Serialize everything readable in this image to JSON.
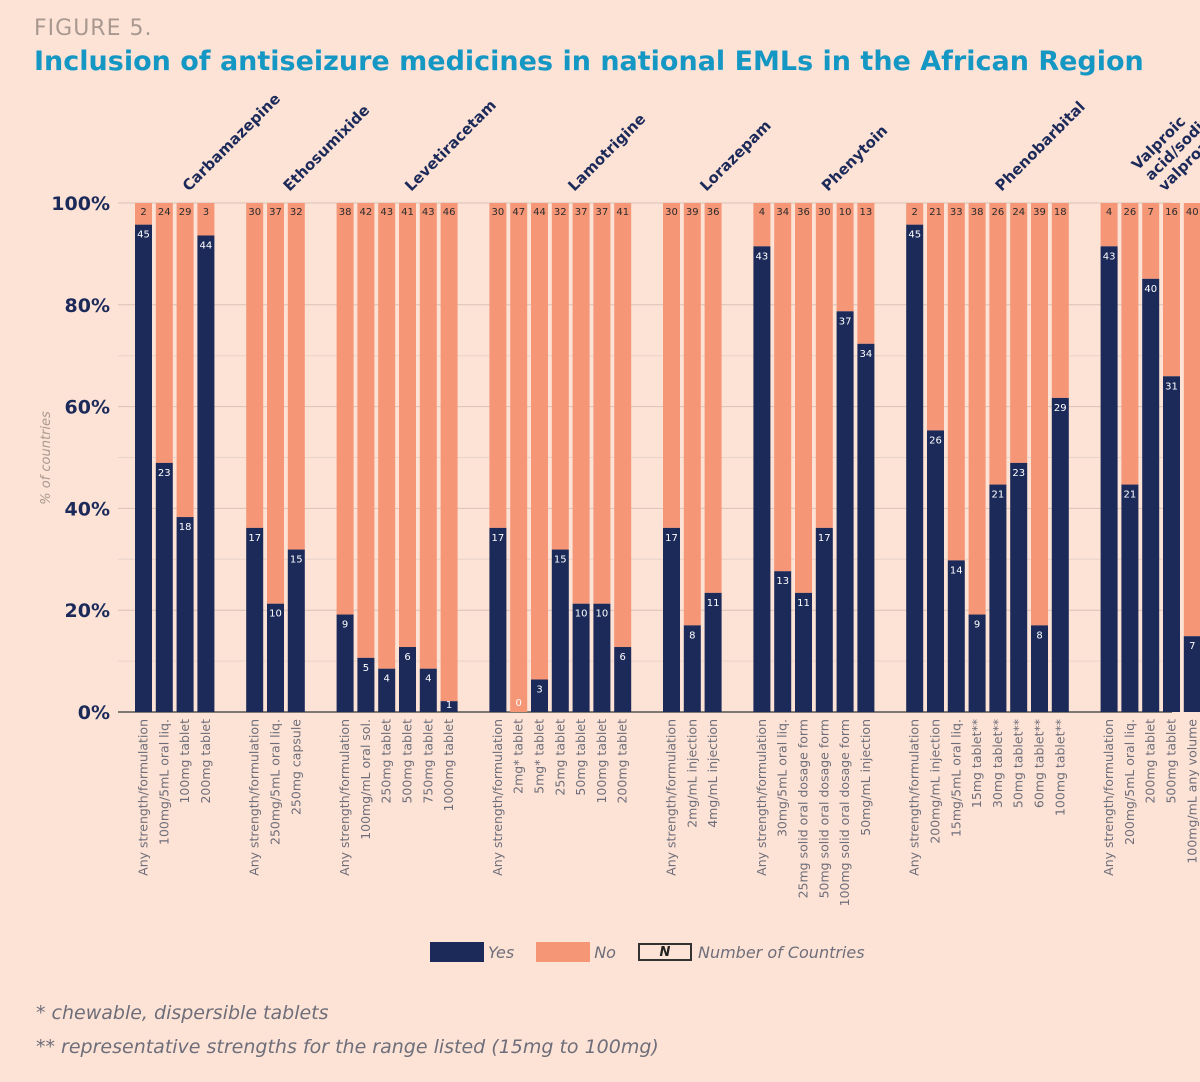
{
  "figure_label": "FIGURE 5.",
  "title": "Inclusion of antiseizure medicines in national EMLs in the African Region",
  "legend": {
    "yes": "Yes",
    "no": "No",
    "n_symbol": "N",
    "n_label": "Number of Countries"
  },
  "footnotes": [
    "* chewable, dispersible tablets",
    "** representative strengths for the range listed (15mg to 100mg)"
  ],
  "colors": {
    "yes": "#1c2a5a",
    "no": "#f59676",
    "background": "#fde3d6",
    "title": "#1597c4"
  },
  "chart_data": {
    "type": "bar",
    "stacked": true,
    "percent": true,
    "ylabel": "% of countries",
    "ylim": [
      0,
      100
    ],
    "yticks": [
      "0%",
      "20%",
      "40%",
      "60%",
      "80%",
      "100%"
    ],
    "series_names": [
      "Yes",
      "No"
    ],
    "groups": [
      {
        "name": "Carbamazepine",
        "bars": [
          {
            "label": "Any strength/formulation",
            "yes": 45,
            "no": 2
          },
          {
            "label": "100mg/5mL oral liq.",
            "yes": 23,
            "no": 24
          },
          {
            "label": "100mg tablet",
            "yes": 18,
            "no": 29
          },
          {
            "label": "200mg tablet",
            "yes": 44,
            "no": 3
          }
        ]
      },
      {
        "name": "Ethosumixide",
        "bars": [
          {
            "label": "Any strength/formulation",
            "yes": 17,
            "no": 30
          },
          {
            "label": "250mg/5mL oral liq.",
            "yes": 10,
            "no": 37
          },
          {
            "label": "250mg capsule",
            "yes": 15,
            "no": 32
          }
        ]
      },
      {
        "name": "Levetiracetam",
        "bars": [
          {
            "label": "Any strength/formulation",
            "yes": 9,
            "no": 38
          },
          {
            "label": "100mg/mL oral sol.",
            "yes": 5,
            "no": 42
          },
          {
            "label": "250mg tablet",
            "yes": 4,
            "no": 43
          },
          {
            "label": "500mg tablet",
            "yes": 6,
            "no": 41
          },
          {
            "label": "750mg tablet",
            "yes": 4,
            "no": 43
          },
          {
            "label": "1000mg tablet",
            "yes": 1,
            "no": 46
          }
        ]
      },
      {
        "name": "Lamotrigine",
        "bars": [
          {
            "label": "Any strength/formulation",
            "yes": 17,
            "no": 30
          },
          {
            "label": "2mg* tablet",
            "yes": 0,
            "no": 47
          },
          {
            "label": "5mg* tablet",
            "yes": 3,
            "no": 44
          },
          {
            "label": "25mg tablet",
            "yes": 15,
            "no": 32
          },
          {
            "label": "50mg tablet",
            "yes": 10,
            "no": 37
          },
          {
            "label": "100mg tablet",
            "yes": 10,
            "no": 37
          },
          {
            "label": "200mg tablet",
            "yes": 6,
            "no": 41
          }
        ]
      },
      {
        "name": "Lorazepam",
        "bars": [
          {
            "label": "Any strength/formulation",
            "yes": 17,
            "no": 30
          },
          {
            "label": "2mg/mL injection",
            "yes": 8,
            "no": 39
          },
          {
            "label": "4mg/mL injection",
            "yes": 11,
            "no": 36
          }
        ]
      },
      {
        "name": "Phenytoin",
        "bars": [
          {
            "label": "Any strength/formulation",
            "yes": 43,
            "no": 4
          },
          {
            "label": "30mg/5mL oral liq.",
            "yes": 13,
            "no": 34
          },
          {
            "label": "25mg solid oral dosage form",
            "yes": 11,
            "no": 36
          },
          {
            "label": "50mg solid oral dosage form",
            "yes": 17,
            "no": 30
          },
          {
            "label": "100mg solid oral dosage form",
            "yes": 37,
            "no": 10
          },
          {
            "label": "50mg/mL injection",
            "yes": 34,
            "no": 13
          }
        ]
      },
      {
        "name": "Phenobarbital",
        "bars": [
          {
            "label": "Any strength/formulation",
            "yes": 45,
            "no": 2
          },
          {
            "label": "200mg/mL injection",
            "yes": 26,
            "no": 21
          },
          {
            "label": "15mg/5mL oral liq.",
            "yes": 14,
            "no": 33
          },
          {
            "label": "15mg tablet**",
            "yes": 9,
            "no": 38
          },
          {
            "label": "30mg tablet**",
            "yes": 21,
            "no": 26
          },
          {
            "label": "50mg tablet**",
            "yes": 23,
            "no": 24
          },
          {
            "label": "60mg tablet**",
            "yes": 8,
            "no": 39
          },
          {
            "label": "100mg tablet**",
            "yes": 29,
            "no": 18
          }
        ]
      },
      {
        "name": "Valproic acid/sodium valproate",
        "name_lines": [
          "Valproic",
          "acid/sodium",
          "valproate"
        ],
        "bars": [
          {
            "label": "Any strength/formulation",
            "yes": 43,
            "no": 4
          },
          {
            "label": "200mg/5mL oral liq.",
            "yes": 21,
            "no": 26
          },
          {
            "label": "200mg tablet",
            "yes": 40,
            "no": 7
          },
          {
            "label": "500mg tablet",
            "yes": 31,
            "no": 16
          },
          {
            "label": "100mg/mL any volume",
            "yes": 7,
            "no": 40
          }
        ]
      }
    ]
  }
}
